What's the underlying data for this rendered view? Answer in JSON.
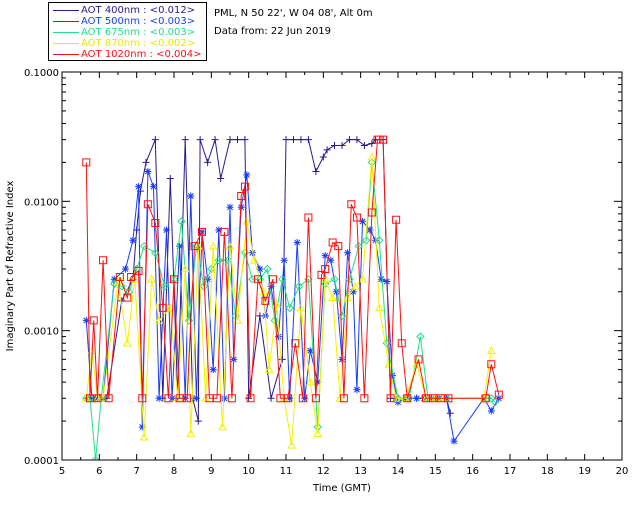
{
  "header": {
    "site": "PML, N 50 22', W 04 08', Alt 0m",
    "date": "Data from: 22 Jun 2019"
  },
  "legend": [
    {
      "label": "AOT  400nm : ",
      "value": "<0.012>",
      "color": "#2a1a8c"
    },
    {
      "label": "AOT  500nm : ",
      "value": "<0.003>",
      "color": "#1a3cff"
    },
    {
      "label": "AOT  675nm : ",
      "value": "<0.003>",
      "color": "#22e08a"
    },
    {
      "label": "AOT  870nm : ",
      "value": "<0.002>",
      "color": "#ffff00"
    },
    {
      "label": "AOT 1020nm : ",
      "value": "<0.004>",
      "color": "#ff1010"
    }
  ],
  "chart_data": {
    "type": "line",
    "xlabel": "Time (GMT)",
    "ylabel": "Imaginary Part of Refractive Index",
    "xlim": [
      5,
      20
    ],
    "ylim": [
      0.0001,
      0.1
    ],
    "yscale": "log",
    "xticks": [
      "5",
      "6",
      "7",
      "8",
      "9",
      "10",
      "11",
      "12",
      "13",
      "14",
      "15",
      "16",
      "17",
      "18",
      "19",
      "20"
    ],
    "yticks": [
      "0.0001",
      "0.0010",
      "0.0100",
      "0.1000"
    ],
    "series": [
      {
        "name": "AOT  400nm",
        "color": "#2a1a8c",
        "marker": "plus",
        "points": [
          [
            5.65,
            0.0003
          ],
          [
            5.8,
            0.0003
          ],
          [
            6.0,
            0.0003
          ],
          [
            6.2,
            0.0003
          ],
          [
            6.6,
            0.0017
          ],
          [
            6.9,
            0.0025
          ],
          [
            7.0,
            0.006
          ],
          [
            7.1,
            0.012
          ],
          [
            7.25,
            0.02
          ],
          [
            7.5,
            0.03
          ],
          [
            7.7,
            0.0003
          ],
          [
            7.9,
            0.015
          ],
          [
            8.1,
            0.0003
          ],
          [
            8.3,
            0.03
          ],
          [
            8.5,
            0.0003
          ],
          [
            8.65,
            0.0002
          ],
          [
            8.7,
            0.03
          ],
          [
            8.9,
            0.02
          ],
          [
            9.1,
            0.03
          ],
          [
            9.25,
            0.015
          ],
          [
            9.5,
            0.03
          ],
          [
            9.7,
            0.03
          ],
          [
            9.9,
            0.03
          ],
          [
            10.0,
            0.0003
          ],
          [
            10.3,
            0.0013
          ],
          [
            10.6,
            0.0003
          ],
          [
            10.9,
            0.0006
          ],
          [
            11.0,
            0.03
          ],
          [
            11.2,
            0.03
          ],
          [
            11.4,
            0.03
          ],
          [
            11.6,
            0.03
          ],
          [
            11.8,
            0.017
          ],
          [
            12.0,
            0.022
          ],
          [
            12.1,
            0.025
          ],
          [
            12.3,
            0.027
          ],
          [
            12.5,
            0.027
          ],
          [
            12.7,
            0.03
          ],
          [
            12.9,
            0.03
          ],
          [
            13.1,
            0.027
          ],
          [
            13.3,
            0.028
          ],
          [
            13.4,
            0.03
          ],
          [
            13.6,
            0.03
          ],
          [
            13.8,
            0.0003
          ],
          [
            14.0,
            0.0003
          ],
          [
            14.3,
            0.0003
          ],
          [
            14.5,
            0.0003
          ],
          [
            14.8,
            0.0003
          ],
          [
            15.0,
            0.0003
          ],
          [
            15.3,
            0.0003
          ],
          [
            15.4,
            0.00023
          ]
        ]
      },
      {
        "name": "AOT  500nm",
        "color": "#1a3cff",
        "marker": "star",
        "points": [
          [
            5.65,
            0.0012
          ],
          [
            5.8,
            0.0003
          ],
          [
            5.9,
            0.0003
          ],
          [
            6.1,
            0.0003
          ],
          [
            6.4,
            0.0025
          ],
          [
            6.7,
            0.003
          ],
          [
            6.9,
            0.005
          ],
          [
            7.05,
            0.013
          ],
          [
            7.15,
            0.00018
          ],
          [
            7.3,
            0.017
          ],
          [
            7.45,
            0.013
          ],
          [
            7.6,
            0.0003
          ],
          [
            7.8,
            0.006
          ],
          [
            7.95,
            0.0003
          ],
          [
            8.15,
            0.0045
          ],
          [
            8.3,
            0.0003
          ],
          [
            8.45,
            0.011
          ],
          [
            8.6,
            0.0003
          ],
          [
            8.75,
            0.0058
          ],
          [
            8.9,
            0.0025
          ],
          [
            9.05,
            0.0005
          ],
          [
            9.2,
            0.006
          ],
          [
            9.35,
            0.0003
          ],
          [
            9.5,
            0.009
          ],
          [
            9.6,
            0.0006
          ],
          [
            9.8,
            0.009
          ],
          [
            9.95,
            0.016
          ],
          [
            10.1,
            0.004
          ],
          [
            10.3,
            0.003
          ],
          [
            10.45,
            0.0013
          ],
          [
            10.6,
            0.0022
          ],
          [
            10.8,
            0.0009
          ],
          [
            10.95,
            0.0035
          ],
          [
            11.1,
            0.0003
          ],
          [
            11.3,
            0.0048
          ],
          [
            11.5,
            0.0003
          ],
          [
            11.65,
            0.0007
          ],
          [
            11.85,
            0.0004
          ],
          [
            12.05,
            0.0038
          ],
          [
            12.2,
            0.0035
          ],
          [
            12.35,
            0.002
          ],
          [
            12.5,
            0.0006
          ],
          [
            12.65,
            0.004
          ],
          [
            12.8,
            0.002
          ],
          [
            12.9,
            0.00035
          ],
          [
            13.05,
            0.007
          ],
          [
            13.25,
            0.006
          ],
          [
            13.4,
            0.005
          ],
          [
            13.55,
            0.0025
          ],
          [
            13.7,
            0.0024
          ],
          [
            13.85,
            0.00045
          ],
          [
            14.0,
            0.00028
          ],
          [
            14.2,
            0.0003
          ],
          [
            14.5,
            0.0003
          ],
          [
            14.7,
            0.0003
          ],
          [
            14.9,
            0.0003
          ],
          [
            15.1,
            0.0003
          ],
          [
            15.3,
            0.0003
          ],
          [
            15.5,
            0.00014
          ],
          [
            16.3,
            0.0003
          ],
          [
            16.5,
            0.00024
          ],
          [
            16.7,
            0.0003
          ]
        ]
      },
      {
        "name": "AOT  675nm",
        "color": "#22e08a",
        "marker": "diamond",
        "points": [
          [
            5.65,
            0.0003
          ],
          [
            5.75,
            0.0003
          ],
          [
            5.9,
            0.0001
          ],
          [
            6.05,
            0.0003
          ],
          [
            6.4,
            0.0023
          ],
          [
            6.6,
            0.0022
          ],
          [
            6.8,
            0.002
          ],
          [
            7.0,
            0.003
          ],
          [
            7.2,
            0.0045
          ],
          [
            7.5,
            0.004
          ],
          [
            7.75,
            0.0022
          ],
          [
            8.0,
            0.0025
          ],
          [
            8.2,
            0.007
          ],
          [
            8.4,
            0.0012
          ],
          [
            8.6,
            0.0045
          ],
          [
            8.8,
            0.0022
          ],
          [
            9.0,
            0.003
          ],
          [
            9.2,
            0.0035
          ],
          [
            9.45,
            0.0035
          ],
          [
            9.65,
            0.0013
          ],
          [
            9.9,
            0.004
          ],
          [
            10.1,
            0.0025
          ],
          [
            10.3,
            0.0025
          ],
          [
            10.5,
            0.003
          ],
          [
            10.7,
            0.0012
          ],
          [
            10.9,
            0.0025
          ],
          [
            11.1,
            0.0015
          ],
          [
            11.35,
            0.0022
          ],
          [
            11.6,
            0.0025
          ],
          [
            11.85,
            0.00018
          ],
          [
            12.05,
            0.0023
          ],
          [
            12.3,
            0.0025
          ],
          [
            12.5,
            0.0013
          ],
          [
            12.7,
            0.0025
          ],
          [
            12.95,
            0.0045
          ],
          [
            13.15,
            0.005
          ],
          [
            13.3,
            0.02
          ],
          [
            13.5,
            0.005
          ],
          [
            13.7,
            0.0008
          ],
          [
            14.0,
            0.0003
          ],
          [
            14.3,
            0.0003
          ],
          [
            14.6,
            0.0009
          ],
          [
            14.8,
            0.0003
          ],
          [
            15.0,
            0.0003
          ],
          [
            15.3,
            0.0003
          ],
          [
            16.4,
            0.0003
          ],
          [
            16.5,
            0.0003
          ],
          [
            16.6,
            0.00028
          ]
        ]
      },
      {
        "name": "AOT  870nm",
        "color": "#ffff00",
        "marker": "triangle",
        "points": [
          [
            5.65,
            0.0003
          ],
          [
            5.8,
            0.0007
          ],
          [
            5.95,
            0.0003
          ],
          [
            6.1,
            0.0003
          ],
          [
            6.5,
            0.0024
          ],
          [
            6.75,
            0.0008
          ],
          [
            6.95,
            0.0025
          ],
          [
            7.2,
            0.00015
          ],
          [
            7.4,
            0.0025
          ],
          [
            7.6,
            0.0012
          ],
          [
            7.9,
            0.0015
          ],
          [
            8.1,
            0.0003
          ],
          [
            8.3,
            0.003
          ],
          [
            8.45,
            0.00016
          ],
          [
            8.65,
            0.0045
          ],
          [
            8.85,
            0.0003
          ],
          [
            9.05,
            0.0045
          ],
          [
            9.3,
            0.00018
          ],
          [
            9.5,
            0.0045
          ],
          [
            9.7,
            0.0012
          ],
          [
            9.95,
            0.007
          ],
          [
            10.15,
            0.0035
          ],
          [
            10.4,
            0.002
          ],
          [
            10.55,
            0.0005
          ],
          [
            10.75,
            0.0016
          ],
          [
            10.95,
            0.0003
          ],
          [
            11.15,
            0.00013
          ],
          [
            11.4,
            0.0015
          ],
          [
            11.65,
            0.0004
          ],
          [
            11.85,
            0.00016
          ],
          [
            12.05,
            0.0025
          ],
          [
            12.25,
            0.0018
          ],
          [
            12.45,
            0.0003
          ],
          [
            12.65,
            0.0018
          ],
          [
            12.85,
            0.0022
          ],
          [
            13.05,
            0.0025
          ],
          [
            13.3,
            0.022
          ],
          [
            13.5,
            0.0015
          ],
          [
            13.75,
            0.00055
          ],
          [
            13.95,
            0.0003
          ],
          [
            14.2,
            0.0003
          ],
          [
            14.5,
            0.00055
          ],
          [
            14.75,
            0.0003
          ],
          [
            15.0,
            0.0003
          ],
          [
            15.2,
            0.0003
          ],
          [
            16.3,
            0.0003
          ],
          [
            16.5,
            0.0007
          ]
        ]
      },
      {
        "name": "AOT 1020nm",
        "color": "#ff1010",
        "marker": "square",
        "points": [
          [
            5.65,
            0.02
          ],
          [
            5.75,
            0.0003
          ],
          [
            5.85,
            0.0012
          ],
          [
            5.95,
            0.0003
          ],
          [
            6.1,
            0.0035
          ],
          [
            6.25,
            0.0003
          ],
          [
            6.55,
            0.0026
          ],
          [
            6.75,
            0.0018
          ],
          [
            6.85,
            0.0026
          ],
          [
            7.05,
            0.0029
          ],
          [
            7.15,
            0.0003
          ],
          [
            7.3,
            0.0095
          ],
          [
            7.5,
            0.0068
          ],
          [
            7.7,
            0.0015
          ],
          [
            7.85,
            0.0003
          ],
          [
            8.0,
            0.0025
          ],
          [
            8.15,
            0.0003
          ],
          [
            8.35,
            0.0003
          ],
          [
            8.55,
            0.0045
          ],
          [
            8.75,
            0.0058
          ],
          [
            8.95,
            0.0003
          ],
          [
            9.15,
            0.0003
          ],
          [
            9.35,
            0.0058
          ],
          [
            9.55,
            0.0003
          ],
          [
            9.8,
            0.011
          ],
          [
            9.9,
            0.013
          ],
          [
            10.05,
            0.0003
          ],
          [
            10.25,
            0.0025
          ],
          [
            10.45,
            0.0017
          ],
          [
            10.65,
            0.0025
          ],
          [
            10.85,
            0.0003
          ],
          [
            11.05,
            0.0003
          ],
          [
            11.25,
            0.0008
          ],
          [
            11.45,
            0.0003
          ],
          [
            11.6,
            0.0075
          ],
          [
            11.8,
            0.0003
          ],
          [
            11.95,
            0.0027
          ],
          [
            12.05,
            0.003
          ],
          [
            12.25,
            0.0048
          ],
          [
            12.4,
            0.0045
          ],
          [
            12.55,
            0.0003
          ],
          [
            12.75,
            0.0095
          ],
          [
            12.9,
            0.0075
          ],
          [
            13.1,
            0.0003
          ],
          [
            13.3,
            0.0082
          ],
          [
            13.45,
            0.03
          ],
          [
            13.6,
            0.03
          ],
          [
            13.8,
            0.0003
          ],
          [
            13.95,
            0.0072
          ],
          [
            14.1,
            0.0008
          ],
          [
            14.25,
            0.0003
          ],
          [
            14.55,
            0.0006
          ],
          [
            14.75,
            0.0003
          ],
          [
            14.95,
            0.0003
          ],
          [
            15.15,
            0.0003
          ],
          [
            15.35,
            0.0003
          ],
          [
            16.35,
            0.0003
          ],
          [
            16.5,
            0.00055
          ],
          [
            16.7,
            0.00032
          ]
        ]
      }
    ]
  }
}
